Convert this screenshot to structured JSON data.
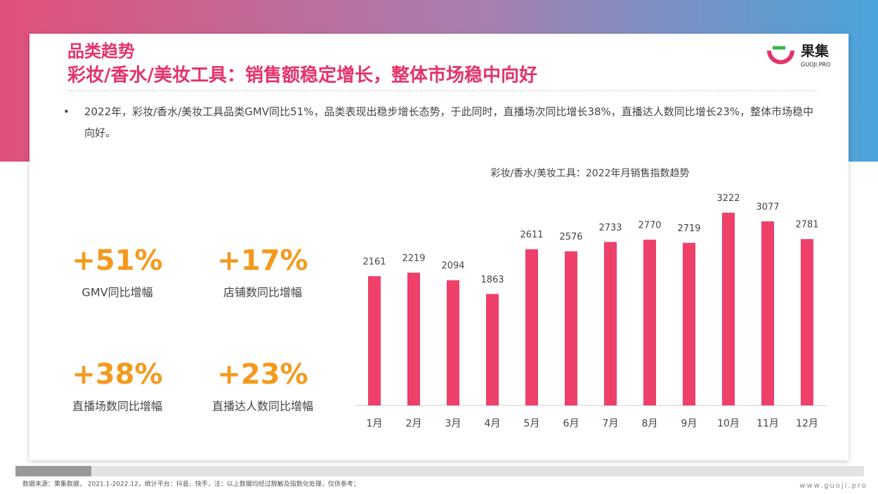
{
  "header": {
    "title": "品类趋势",
    "subtitle": "彩妆/香水/美妆工具：销售额稳定增长，整体市场稳中向好"
  },
  "logo": {
    "name": "果集",
    "domain": "GUOJI.PRO"
  },
  "bullet": "2022年，彩妆/香水/美妆工具品类GMV同比51%，品类表现出稳步增长态势，于此同时，直播场次同比增长38%，直播达人数同比增长23%，整体市场稳中向好。",
  "stats": [
    {
      "value": "+51%",
      "label": "GMV同比增幅"
    },
    {
      "value": "+17%",
      "label": "店铺数同比增幅"
    },
    {
      "value": "+38%",
      "label": "直播场数同比增幅"
    },
    {
      "value": "+23%",
      "label": "直播达人数同比增幅"
    }
  ],
  "chart_data": {
    "type": "bar",
    "title": "彩妆/香水/美妆工具：2022年月销售指数趋势",
    "categories": [
      "1月",
      "2月",
      "3月",
      "4月",
      "5月",
      "6月",
      "7月",
      "8月",
      "9月",
      "10月",
      "11月",
      "12月"
    ],
    "values": [
      2161,
      2219,
      2094,
      1863,
      2611,
      2576,
      2733,
      2770,
      2719,
      3222,
      3077,
      2781
    ],
    "color": "#ee4069",
    "ylim": [
      0,
      3500
    ]
  },
  "footer": {
    "source": "数据来源：果集数据， 2021.1-2022.12，统计平台：抖音、快手，注：以上数据均经过脱敏及指数化处理，仅供参考；",
    "url": "www.guoji.pro"
  }
}
